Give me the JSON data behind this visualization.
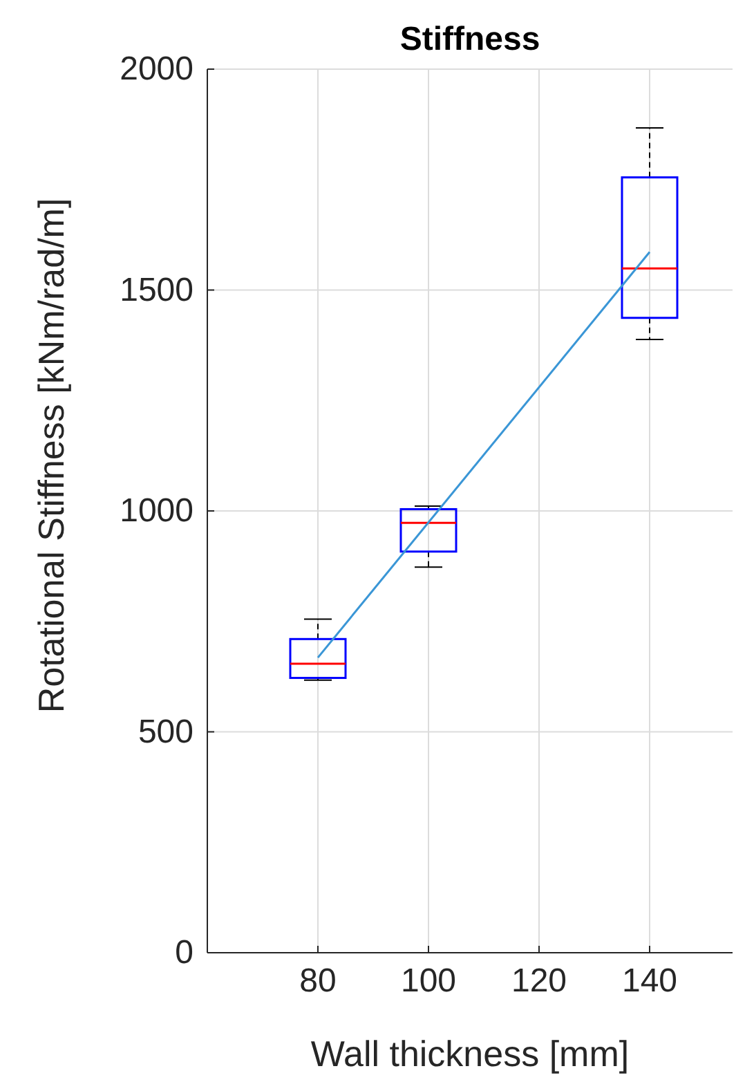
{
  "chart_data": {
    "type": "box",
    "title": "Stiffness",
    "xlabel": "Wall thickness [mm]",
    "ylabel": "Rotational Stiffness [kNm/rad/m]",
    "xlim": [
      60,
      155
    ],
    "xticks": [
      80,
      100,
      120,
      140
    ],
    "ylim": [
      0,
      2000
    ],
    "yticks": [
      0,
      500,
      1000,
      1500,
      2000
    ],
    "grid": true,
    "series": [
      {
        "color": "#0000ff",
        "x": [
          80,
          100,
          140
        ],
        "boxes": [
          {
            "low": 617,
            "q1": 622,
            "median": 654,
            "q3": 710,
            "high": 755
          },
          {
            "low": 873,
            "q1": 908,
            "median": 973,
            "q3": 1004,
            "high": 1011
          },
          {
            "low": 1388,
            "q1": 1437,
            "median": 1549,
            "q3": 1755,
            "high": 1867
          }
        ]
      },
      {
        "type": "line",
        "color": "#3a96d6",
        "x": [
          80,
          140
        ],
        "values": [
          668,
          1586
        ],
        "marker": "none",
        "line_style": "solid"
      }
    ]
  }
}
